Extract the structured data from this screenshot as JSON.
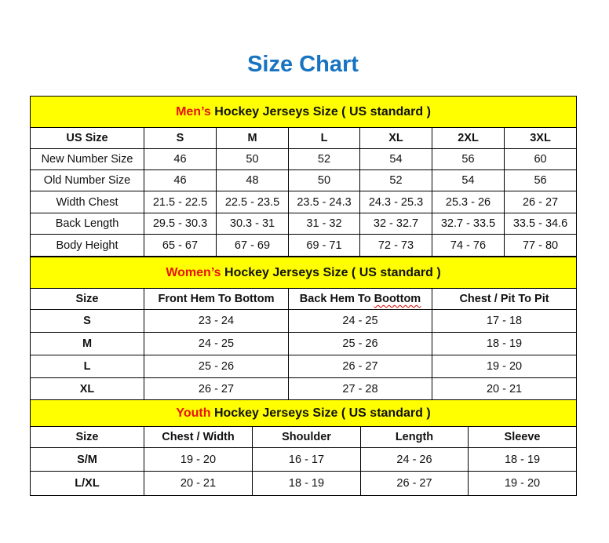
{
  "title": "Size Chart",
  "mens": {
    "heading_highlight": "Men’s",
    "heading_rest": " Hockey Jerseys Size ( US standard )",
    "columns": [
      "US Size",
      "S",
      "M",
      "L",
      "XL",
      "2XL",
      "3XL"
    ],
    "rows": [
      [
        "New Number Size",
        "46",
        "50",
        "52",
        "54",
        "56",
        "60"
      ],
      [
        "Old Number Size",
        "46",
        "48",
        "50",
        "52",
        "54",
        "56"
      ],
      [
        "Width Chest",
        "21.5 - 22.5",
        "22.5 - 23.5",
        "23.5 - 24.3",
        "24.3 - 25.3",
        "25.3 - 26",
        "26 - 27"
      ],
      [
        "Back Length",
        "29.5 - 30.3",
        "30.3 - 31",
        "31 - 32",
        "32 - 32.7",
        "32.7 - 33.5",
        "33.5 - 34.6"
      ],
      [
        "Body Height",
        "65 - 67",
        "67 - 69",
        "69 - 71",
        "72 - 73",
        "74 - 76",
        "77 - 80"
      ]
    ]
  },
  "womens": {
    "heading_highlight": "Women’s",
    "heading_rest": " Hockey Jerseys Size ( US standard )",
    "columns": [
      "Size",
      "Front Hem To Bottom",
      "Back Hem To Boottom",
      "Chest / Pit To Pit"
    ],
    "rows": [
      [
        "S",
        "23 - 24",
        "24 - 25",
        "17 - 18"
      ],
      [
        "M",
        "24 - 25",
        "25 - 26",
        "18 - 19"
      ],
      [
        "L",
        "25 - 26",
        "26 - 27",
        "19 - 20"
      ],
      [
        "XL",
        "26 - 27",
        "27 - 28",
        "20 - 21"
      ]
    ]
  },
  "youth": {
    "heading_highlight": "Youth",
    "heading_rest": " Hockey Jerseys Size ( US standard )",
    "columns": [
      "Size",
      "Chest / Width",
      "Shoulder",
      "Length",
      "Sleeve"
    ],
    "rows": [
      [
        "S/M",
        "19 - 20",
        "16 - 17",
        "24 - 26",
        "18 - 19"
      ],
      [
        "L/XL",
        "20 - 21",
        "18 - 19",
        "26 - 27",
        "19 - 20"
      ]
    ]
  },
  "colors": {
    "title": "#1874c1",
    "section_bg": "#ffff00",
    "highlight": "#e8120c"
  }
}
